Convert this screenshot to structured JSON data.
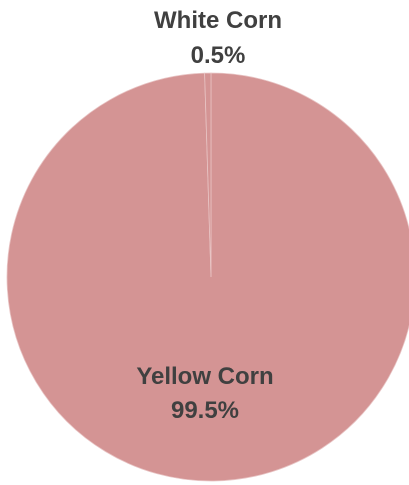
{
  "chart_data": {
    "type": "pie",
    "slices": [
      {
        "label": "Yellow Corn",
        "percent_label": "99.5%",
        "value": 99.5,
        "color": "#d49494"
      },
      {
        "label": "White Corn",
        "percent_label": "0.5%",
        "value": 0.5,
        "color": "#d49494"
      }
    ],
    "start_angle_deg": 0,
    "direction": "clockwise",
    "legend": "none",
    "label_color": "#404040",
    "separator_color": "#e8c4c4"
  }
}
